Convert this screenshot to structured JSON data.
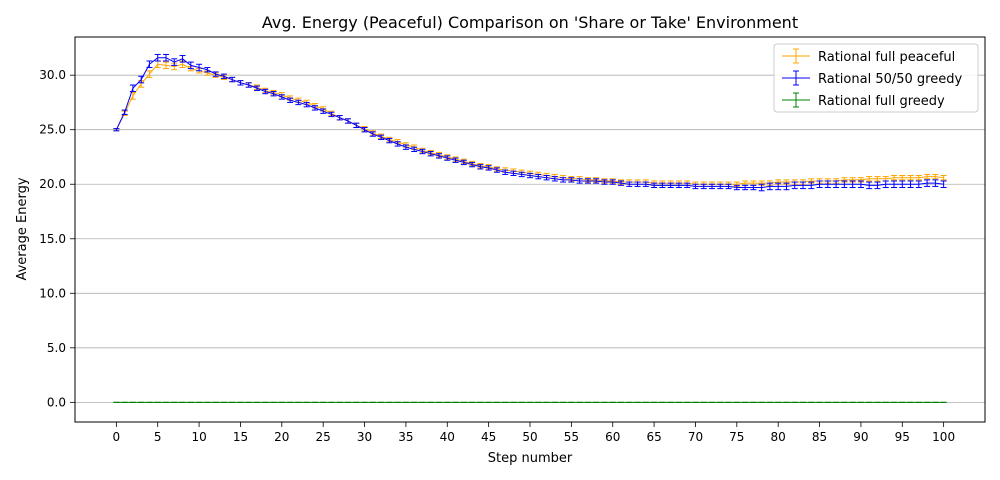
{
  "chart_data": {
    "type": "line",
    "title": "Avg. Energy (Peaceful) Comparison on 'Share or Take' Environment",
    "xlabel": "Step number",
    "ylabel": "Average Energy",
    "xlim": [
      -5,
      105
    ],
    "ylim": [
      -1.8,
      33.5
    ],
    "xticks": [
      0,
      5,
      10,
      15,
      20,
      25,
      30,
      35,
      40,
      45,
      50,
      55,
      60,
      65,
      70,
      75,
      80,
      85,
      90,
      95,
      100
    ],
    "xtick_labels": [
      "0",
      "5",
      "10",
      "15",
      "20",
      "25",
      "30",
      "35",
      "40",
      "45",
      "50",
      "55",
      "60",
      "65",
      "70",
      "75",
      "80",
      "85",
      "90",
      "95",
      "100"
    ],
    "yticks": [
      0,
      5,
      10,
      15,
      20,
      25,
      30
    ],
    "ytick_labels": [
      "0.0",
      "5.0",
      "10.0",
      "15.0",
      "20.0",
      "25.0",
      "30.0"
    ],
    "grid": "horizontal",
    "legend_position": "top-right",
    "error_bars": true,
    "series": [
      {
        "name": "Rational full peaceful",
        "color": "#FFA500",
        "x": [
          0,
          1,
          2,
          3,
          4,
          5,
          6,
          7,
          8,
          9,
          10,
          11,
          12,
          13,
          14,
          15,
          16,
          17,
          18,
          19,
          20,
          21,
          22,
          23,
          24,
          25,
          26,
          27,
          28,
          29,
          30,
          31,
          32,
          33,
          34,
          35,
          36,
          37,
          38,
          39,
          40,
          41,
          42,
          43,
          44,
          45,
          46,
          47,
          48,
          49,
          50,
          51,
          52,
          53,
          54,
          55,
          56,
          57,
          58,
          59,
          60,
          61,
          62,
          63,
          64,
          65,
          66,
          67,
          68,
          69,
          70,
          71,
          72,
          73,
          74,
          75,
          76,
          77,
          78,
          79,
          80,
          81,
          82,
          83,
          84,
          85,
          86,
          87,
          88,
          89,
          90,
          91,
          92,
          93,
          94,
          95,
          96,
          97,
          98,
          99,
          100
        ],
        "values": [
          25.0,
          26.5,
          28.1,
          29.2,
          30.1,
          31.0,
          30.9,
          30.8,
          31.0,
          30.6,
          30.4,
          30.2,
          30.0,
          29.8,
          29.6,
          29.3,
          29.1,
          28.9,
          28.6,
          28.4,
          28.2,
          27.9,
          27.7,
          27.5,
          27.2,
          26.9,
          26.5,
          26.1,
          25.8,
          25.4,
          25.1,
          24.7,
          24.4,
          24.1,
          23.9,
          23.6,
          23.4,
          23.1,
          22.9,
          22.7,
          22.5,
          22.3,
          22.1,
          21.9,
          21.7,
          21.6,
          21.4,
          21.3,
          21.2,
          21.1,
          21.0,
          20.9,
          20.8,
          20.7,
          20.6,
          20.5,
          20.5,
          20.4,
          20.4,
          20.3,
          20.3,
          20.2,
          20.2,
          20.2,
          20.2,
          20.1,
          20.1,
          20.1,
          20.1,
          20.1,
          20.0,
          20.0,
          20.0,
          20.0,
          20.0,
          20.0,
          20.1,
          20.1,
          20.1,
          20.1,
          20.2,
          20.2,
          20.2,
          20.2,
          20.3,
          20.3,
          20.3,
          20.3,
          20.4,
          20.4,
          20.4,
          20.5,
          20.5,
          20.5,
          20.6,
          20.6,
          20.6,
          20.6,
          20.7,
          20.7,
          20.6
        ],
        "errors": [
          0.1,
          0.2,
          0.3,
          0.3,
          0.3,
          0.3,
          0.3,
          0.3,
          0.3,
          0.2,
          0.2,
          0.2,
          0.2,
          0.2,
          0.2,
          0.2,
          0.2,
          0.2,
          0.2,
          0.2,
          0.2,
          0.2,
          0.2,
          0.2,
          0.2,
          0.2,
          0.2,
          0.2,
          0.2,
          0.2,
          0.2,
          0.2,
          0.2,
          0.2,
          0.2,
          0.2,
          0.2,
          0.2,
          0.2,
          0.2,
          0.2,
          0.2,
          0.2,
          0.2,
          0.2,
          0.2,
          0.2,
          0.2,
          0.2,
          0.2,
          0.2,
          0.2,
          0.2,
          0.2,
          0.2,
          0.2,
          0.2,
          0.2,
          0.2,
          0.2,
          0.2,
          0.2,
          0.2,
          0.2,
          0.2,
          0.2,
          0.2,
          0.2,
          0.2,
          0.2,
          0.2,
          0.2,
          0.2,
          0.2,
          0.2,
          0.2,
          0.2,
          0.2,
          0.2,
          0.2,
          0.2,
          0.2,
          0.2,
          0.2,
          0.2,
          0.2,
          0.2,
          0.2,
          0.2,
          0.2,
          0.2,
          0.2,
          0.2,
          0.2,
          0.2,
          0.2,
          0.2,
          0.2,
          0.2,
          0.2,
          0.2
        ]
      },
      {
        "name": "Rational 50/50 greedy",
        "color": "#0000FF",
        "x": [
          0,
          1,
          2,
          3,
          4,
          5,
          6,
          7,
          8,
          9,
          10,
          11,
          12,
          13,
          14,
          15,
          16,
          17,
          18,
          19,
          20,
          21,
          22,
          23,
          24,
          25,
          26,
          27,
          28,
          29,
          30,
          31,
          32,
          33,
          34,
          35,
          36,
          37,
          38,
          39,
          40,
          41,
          42,
          43,
          44,
          45,
          46,
          47,
          48,
          49,
          50,
          51,
          52,
          53,
          54,
          55,
          56,
          57,
          58,
          59,
          60,
          61,
          62,
          63,
          64,
          65,
          66,
          67,
          68,
          69,
          70,
          71,
          72,
          73,
          74,
          75,
          76,
          77,
          78,
          79,
          80,
          81,
          82,
          83,
          84,
          85,
          86,
          87,
          88,
          89,
          90,
          91,
          92,
          93,
          94,
          95,
          96,
          97,
          98,
          99,
          100
        ],
        "values": [
          25.0,
          26.6,
          28.8,
          29.6,
          31.0,
          31.6,
          31.6,
          31.2,
          31.5,
          30.9,
          30.7,
          30.5,
          30.1,
          29.9,
          29.6,
          29.3,
          29.1,
          28.8,
          28.5,
          28.3,
          28.0,
          27.7,
          27.5,
          27.3,
          27.0,
          26.7,
          26.4,
          26.1,
          25.8,
          25.4,
          25.0,
          24.6,
          24.3,
          24.0,
          23.7,
          23.4,
          23.2,
          23.0,
          22.8,
          22.6,
          22.4,
          22.2,
          22.0,
          21.8,
          21.6,
          21.5,
          21.3,
          21.1,
          21.0,
          20.9,
          20.8,
          20.7,
          20.6,
          20.5,
          20.4,
          20.4,
          20.3,
          20.3,
          20.3,
          20.2,
          20.2,
          20.1,
          20.0,
          20.0,
          20.0,
          19.9,
          19.9,
          19.9,
          19.9,
          19.9,
          19.8,
          19.8,
          19.8,
          19.8,
          19.8,
          19.7,
          19.7,
          19.7,
          19.7,
          19.8,
          19.8,
          19.8,
          19.9,
          19.9,
          19.9,
          20.0,
          20.0,
          20.0,
          20.0,
          20.0,
          20.0,
          19.9,
          19.9,
          20.0,
          20.0,
          20.0,
          20.0,
          20.0,
          20.1,
          20.1,
          20.0
        ],
        "errors": [
          0.1,
          0.2,
          0.3,
          0.3,
          0.3,
          0.3,
          0.3,
          0.3,
          0.3,
          0.3,
          0.3,
          0.2,
          0.2,
          0.2,
          0.2,
          0.2,
          0.2,
          0.2,
          0.2,
          0.2,
          0.2,
          0.2,
          0.2,
          0.2,
          0.2,
          0.2,
          0.2,
          0.2,
          0.2,
          0.2,
          0.2,
          0.2,
          0.2,
          0.2,
          0.2,
          0.2,
          0.2,
          0.2,
          0.2,
          0.2,
          0.2,
          0.2,
          0.2,
          0.2,
          0.2,
          0.2,
          0.2,
          0.2,
          0.2,
          0.2,
          0.2,
          0.2,
          0.2,
          0.2,
          0.2,
          0.2,
          0.2,
          0.2,
          0.2,
          0.2,
          0.2,
          0.2,
          0.2,
          0.2,
          0.2,
          0.2,
          0.2,
          0.2,
          0.2,
          0.2,
          0.2,
          0.2,
          0.2,
          0.2,
          0.2,
          0.2,
          0.2,
          0.2,
          0.3,
          0.3,
          0.3,
          0.3,
          0.3,
          0.3,
          0.3,
          0.3,
          0.3,
          0.3,
          0.3,
          0.3,
          0.3,
          0.3,
          0.3,
          0.3,
          0.3,
          0.3,
          0.3,
          0.3,
          0.3,
          0.3,
          0.3
        ]
      },
      {
        "name": "Rational full greedy",
        "color": "#008000",
        "x": [
          0,
          1,
          2,
          3,
          4,
          5,
          6,
          7,
          8,
          9,
          10,
          11,
          12,
          13,
          14,
          15,
          16,
          17,
          18,
          19,
          20,
          21,
          22,
          23,
          24,
          25,
          26,
          27,
          28,
          29,
          30,
          31,
          32,
          33,
          34,
          35,
          36,
          37,
          38,
          39,
          40,
          41,
          42,
          43,
          44,
          45,
          46,
          47,
          48,
          49,
          50,
          51,
          52,
          53,
          54,
          55,
          56,
          57,
          58,
          59,
          60,
          61,
          62,
          63,
          64,
          65,
          66,
          67,
          68,
          69,
          70,
          71,
          72,
          73,
          74,
          75,
          76,
          77,
          78,
          79,
          80,
          81,
          82,
          83,
          84,
          85,
          86,
          87,
          88,
          89,
          90,
          91,
          92,
          93,
          94,
          95,
          96,
          97,
          98,
          99,
          100
        ],
        "values": [
          0,
          0,
          0,
          0,
          0,
          0,
          0,
          0,
          0,
          0,
          0,
          0,
          0,
          0,
          0,
          0,
          0,
          0,
          0,
          0,
          0,
          0,
          0,
          0,
          0,
          0,
          0,
          0,
          0,
          0,
          0,
          0,
          0,
          0,
          0,
          0,
          0,
          0,
          0,
          0,
          0,
          0,
          0,
          0,
          0,
          0,
          0,
          0,
          0,
          0,
          0,
          0,
          0,
          0,
          0,
          0,
          0,
          0,
          0,
          0,
          0,
          0,
          0,
          0,
          0,
          0,
          0,
          0,
          0,
          0,
          0,
          0,
          0,
          0,
          0,
          0,
          0,
          0,
          0,
          0,
          0,
          0,
          0,
          0,
          0,
          0,
          0,
          0,
          0,
          0,
          0,
          0,
          0,
          0,
          0,
          0,
          0,
          0,
          0,
          0,
          0
        ],
        "errors": [
          0,
          0,
          0,
          0,
          0,
          0,
          0,
          0,
          0,
          0,
          0,
          0,
          0,
          0,
          0,
          0,
          0,
          0,
          0,
          0,
          0,
          0,
          0,
          0,
          0,
          0,
          0,
          0,
          0,
          0,
          0,
          0,
          0,
          0,
          0,
          0,
          0,
          0,
          0,
          0,
          0,
          0,
          0,
          0,
          0,
          0,
          0,
          0,
          0,
          0,
          0,
          0,
          0,
          0,
          0,
          0,
          0,
          0,
          0,
          0,
          0,
          0,
          0,
          0,
          0,
          0,
          0,
          0,
          0,
          0,
          0,
          0,
          0,
          0,
          0,
          0,
          0,
          0,
          0,
          0,
          0,
          0,
          0,
          0,
          0,
          0,
          0,
          0,
          0,
          0,
          0,
          0,
          0,
          0,
          0,
          0,
          0,
          0,
          0,
          0,
          0
        ]
      }
    ]
  }
}
